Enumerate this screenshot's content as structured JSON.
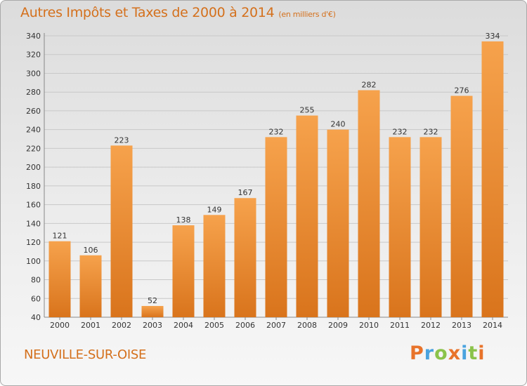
{
  "header": {
    "title": "Autres Impôts et Taxes de 2000 à 2014",
    "unit": "(en milliers d'€)"
  },
  "footer": {
    "place": "NEUVILLE-SUR-OISE",
    "logo": "Proxiti",
    "logo_colors": [
      "#e8732a",
      "#4aa3df",
      "#8bc34a",
      "#e8732a",
      "#4aa3df",
      "#8bc34a",
      "#e8732a"
    ]
  },
  "colors": {
    "bar_light": "#f6a24c",
    "bar_dark": "#d9741c",
    "text_accent": "#d4701c"
  },
  "chart_data": {
    "type": "bar",
    "title": "Autres Impôts et Taxes de 2000 à 2014",
    "subtitle": "(en milliers d'€)",
    "categories": [
      "2000",
      "2001",
      "2002",
      "2003",
      "2004",
      "2005",
      "2006",
      "2007",
      "2008",
      "2009",
      "2010",
      "2011",
      "2012",
      "2013",
      "2014"
    ],
    "values": [
      121,
      106,
      223,
      52,
      138,
      149,
      167,
      232,
      255,
      240,
      282,
      232,
      232,
      276,
      334
    ],
    "ylim": [
      40,
      340
    ],
    "yticks": [
      40,
      60,
      80,
      100,
      120,
      140,
      160,
      180,
      200,
      220,
      240,
      260,
      280,
      300,
      320,
      340
    ],
    "grid": true,
    "xlabel": "",
    "ylabel": ""
  }
}
